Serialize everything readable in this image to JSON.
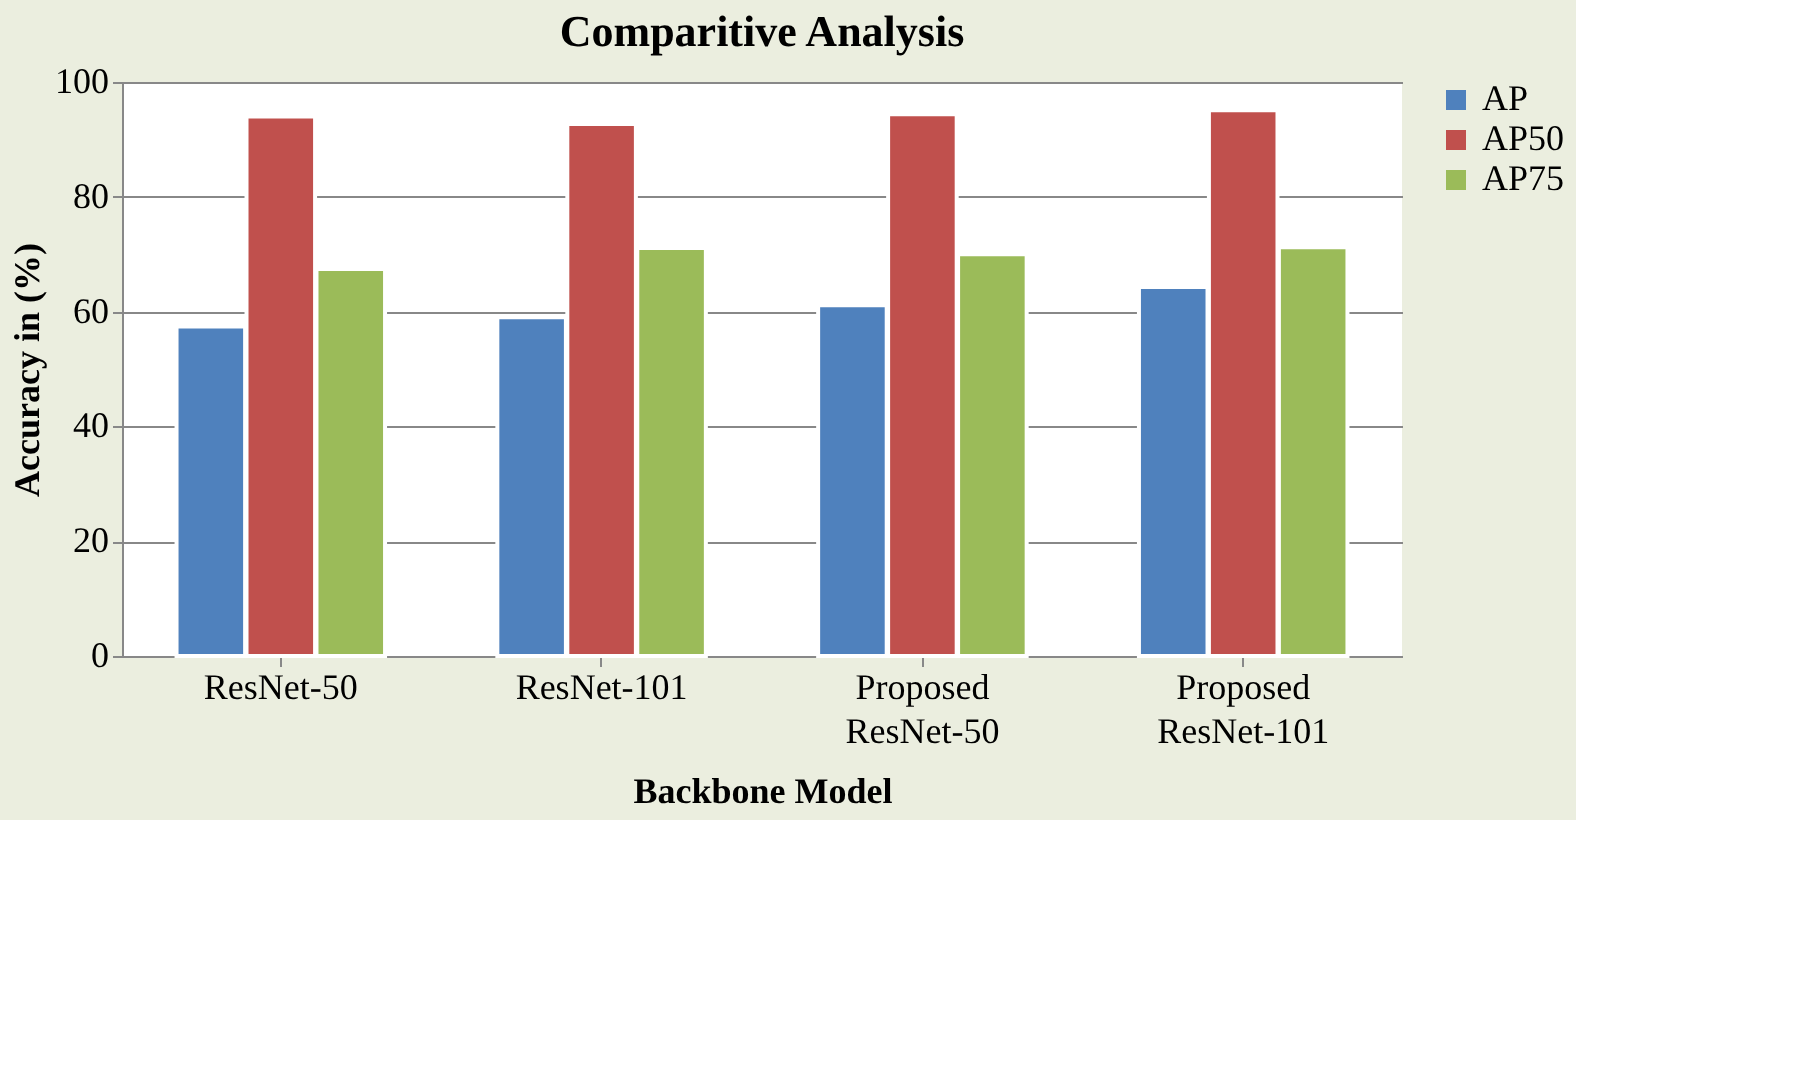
{
  "chart_data": {
    "type": "bar",
    "title": "Comparitive Analysis",
    "xlabel": "Backbone Model",
    "ylabel": "Accuracy in (%)",
    "categories": [
      "ResNet-50",
      "ResNet-101",
      "Proposed ResNet-50",
      "Proposed ResNet-101"
    ],
    "series": [
      {
        "name": "AP",
        "color": "#4f81bd",
        "values": [
          57.4,
          59.0,
          61.1,
          64.3
        ]
      },
      {
        "name": "AP50",
        "color": "#c0504d",
        "values": [
          94.0,
          92.7,
          94.4,
          95.1
        ]
      },
      {
        "name": "AP75",
        "color": "#9bbb59",
        "values": [
          67.4,
          71.1,
          70.0,
          71.2
        ]
      }
    ],
    "ylim": [
      0,
      100
    ],
    "yticks": [
      0,
      20,
      40,
      60,
      80,
      100
    ],
    "grid": "y",
    "legend": "right"
  }
}
